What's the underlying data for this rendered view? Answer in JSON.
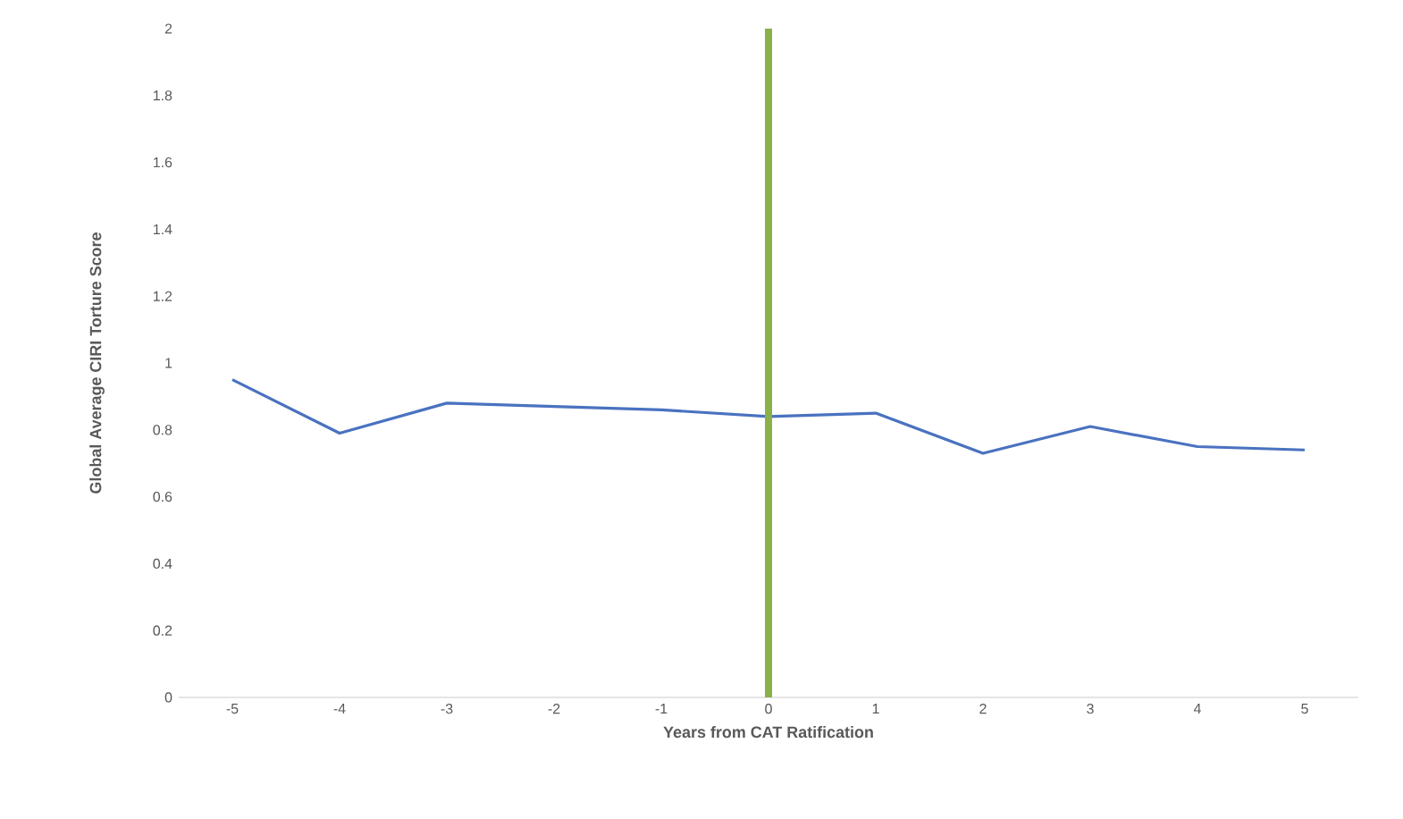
{
  "chart_data": {
    "type": "line",
    "xlabel": "Years from CAT Ratification",
    "ylabel": "Global Average CIRI Torture Score",
    "x": [
      -5,
      -4,
      -3,
      -2,
      -1,
      0,
      1,
      2,
      3,
      4,
      5
    ],
    "series": [
      {
        "color": "#4a72c0",
        "values": [
          0.95,
          0.79,
          0.88,
          0.87,
          0.86,
          0.84,
          0.85,
          0.73,
          0.81,
          0.75,
          0.74
        ]
      }
    ],
    "xlim": [
      -5.5,
      5.5
    ],
    "xticks": [
      -5,
      -4,
      -3,
      -2,
      -1,
      0,
      1,
      2,
      3,
      4,
      5
    ],
    "ylim": [
      0,
      2
    ],
    "yticks": [
      0,
      0.2,
      0.4,
      0.6,
      0.8,
      1,
      1.2,
      1.4,
      1.6,
      1.8,
      2
    ],
    "ref_lines": [
      {
        "axis": "x",
        "value": 0,
        "color": "#8bb04a"
      }
    ],
    "grid": false,
    "marker": "none",
    "line_style": "solid"
  }
}
